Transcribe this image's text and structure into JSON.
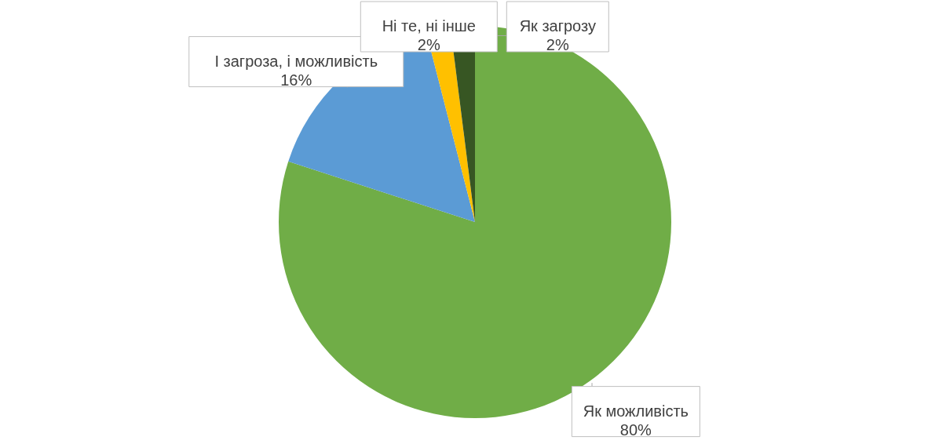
{
  "chart_data": {
    "type": "pie",
    "categories": [
      "Як можливість",
      "І загроза, і можливість",
      "Ні те, ні інше",
      "Як загрозу"
    ],
    "values": [
      80,
      16,
      2,
      2
    ],
    "colors": [
      "#70ad47",
      "#5b9bd5",
      "#ffc000",
      "#375623"
    ],
    "value_labels": [
      "80%",
      "16%",
      "2%",
      "2%"
    ]
  }
}
